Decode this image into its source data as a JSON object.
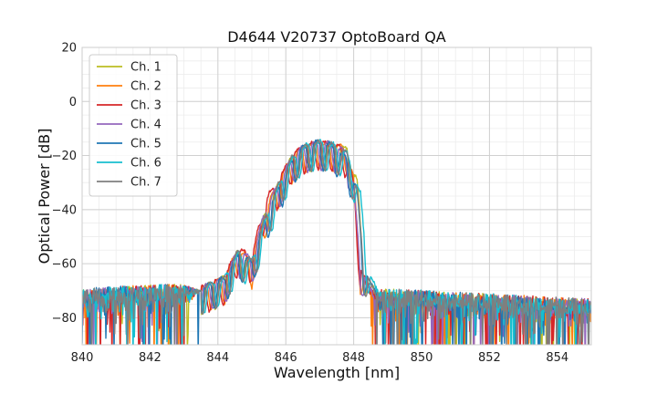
{
  "chart_data": {
    "type": "line",
    "title": "D4644 V20737 OptoBoard QA",
    "xlabel": "Wavelength [nm]",
    "ylabel": "Optical Power [dB]",
    "xlim": [
      840,
      855
    ],
    "ylim": [
      -90,
      20
    ],
    "xticks": [
      840,
      842,
      844,
      846,
      848,
      850,
      852,
      854
    ],
    "yticks": [
      20,
      0,
      -20,
      -40,
      -60,
      -80
    ],
    "xtick_labels": [
      "840",
      "842",
      "844",
      "846",
      "848",
      "850",
      "852",
      "854"
    ],
    "ytick_labels": [
      "20",
      "0",
      "−20",
      "−40",
      "−60",
      "−80"
    ],
    "grid": true,
    "minor_grid": true,
    "legend_position": "top-left",
    "noise_floor_db": -72,
    "series": [
      {
        "name": "Ch. 1",
        "color": "#bcbd22",
        "shift_nm": 0.12,
        "peak_db": -18,
        "band_nm": [
          843.5,
          848.4
        ],
        "anchors": [
          [
            840,
            -72
          ],
          [
            843.5,
            -70
          ],
          [
            844.2,
            -66
          ],
          [
            844.6,
            -56
          ],
          [
            845.0,
            -60
          ],
          [
            845.4,
            -42
          ],
          [
            845.8,
            -31
          ],
          [
            846.2,
            -21
          ],
          [
            846.6,
            -17
          ],
          [
            847.0,
            -16
          ],
          [
            847.4,
            -17
          ],
          [
            847.8,
            -18
          ],
          [
            848.1,
            -30
          ],
          [
            848.3,
            -62
          ],
          [
            848.7,
            -72
          ],
          [
            855,
            -76
          ]
        ]
      },
      {
        "name": "Ch. 2",
        "color": "#ff7f0e",
        "shift_nm": 0.0,
        "peak_db": -17,
        "band_nm": [
          843.5,
          848.3
        ],
        "anchors": [
          [
            840,
            -72
          ],
          [
            843.5,
            -70
          ],
          [
            844.2,
            -66
          ],
          [
            844.6,
            -55
          ],
          [
            845.0,
            -60
          ],
          [
            845.4,
            -41
          ],
          [
            845.8,
            -30
          ],
          [
            846.2,
            -21
          ],
          [
            846.6,
            -17
          ],
          [
            847.0,
            -16
          ],
          [
            847.4,
            -17
          ],
          [
            847.8,
            -18
          ],
          [
            848.0,
            -30
          ],
          [
            848.2,
            -62
          ],
          [
            848.6,
            -72
          ],
          [
            855,
            -76
          ]
        ]
      },
      {
        "name": "Ch. 3",
        "color": "#d62728",
        "shift_nm": -0.05,
        "peak_db": -17,
        "band_nm": [
          843.5,
          848.2
        ],
        "anchors": [
          [
            840,
            -72
          ],
          [
            843.5,
            -70
          ],
          [
            844.2,
            -66
          ],
          [
            844.6,
            -55
          ],
          [
            845.0,
            -58
          ],
          [
            845.4,
            -37
          ],
          [
            845.8,
            -30
          ],
          [
            846.2,
            -20
          ],
          [
            846.6,
            -17
          ],
          [
            847.0,
            -16
          ],
          [
            847.4,
            -17
          ],
          [
            847.8,
            -19
          ],
          [
            848.0,
            -32
          ],
          [
            848.2,
            -62
          ],
          [
            848.6,
            -72
          ],
          [
            855,
            -76
          ]
        ]
      },
      {
        "name": "Ch. 4",
        "color": "#9467bd",
        "shift_nm": 0.05,
        "peak_db": -18,
        "band_nm": [
          843.5,
          848.3
        ],
        "anchors": [
          [
            840,
            -72
          ],
          [
            843.5,
            -70
          ],
          [
            844.2,
            -66
          ],
          [
            844.6,
            -56
          ],
          [
            845.0,
            -59
          ],
          [
            845.4,
            -40
          ],
          [
            845.8,
            -31
          ],
          [
            846.2,
            -21
          ],
          [
            846.6,
            -17
          ],
          [
            847.0,
            -16
          ],
          [
            847.4,
            -17
          ],
          [
            847.8,
            -20
          ],
          [
            848.0,
            -32
          ],
          [
            848.2,
            -62
          ],
          [
            848.6,
            -72
          ],
          [
            855,
            -76
          ]
        ]
      },
      {
        "name": "Ch. 5",
        "color": "#1f77b4",
        "shift_nm": 0.1,
        "peak_db": -17,
        "band_nm": [
          843.5,
          848.4
        ],
        "anchors": [
          [
            840,
            -72
          ],
          [
            843.5,
            -70
          ],
          [
            844.2,
            -66
          ],
          [
            844.6,
            -57
          ],
          [
            845.0,
            -60
          ],
          [
            845.4,
            -44
          ],
          [
            845.8,
            -32
          ],
          [
            846.2,
            -22
          ],
          [
            846.6,
            -17
          ],
          [
            847.0,
            -16
          ],
          [
            847.4,
            -17
          ],
          [
            847.8,
            -22
          ],
          [
            848.1,
            -34
          ],
          [
            848.3,
            -62
          ],
          [
            848.7,
            -72
          ],
          [
            855,
            -76
          ]
        ]
      },
      {
        "name": "Ch. 6",
        "color": "#17becf",
        "shift_nm": 0.2,
        "peak_db": -18,
        "band_nm": [
          843.5,
          848.5
        ],
        "anchors": [
          [
            840,
            -72
          ],
          [
            843.5,
            -70
          ],
          [
            844.2,
            -66
          ],
          [
            844.6,
            -57
          ],
          [
            845.0,
            -60
          ],
          [
            845.4,
            -45
          ],
          [
            845.8,
            -32
          ],
          [
            846.2,
            -22
          ],
          [
            846.6,
            -17
          ],
          [
            847.0,
            -16
          ],
          [
            847.4,
            -17
          ],
          [
            847.8,
            -20
          ],
          [
            848.2,
            -35
          ],
          [
            848.4,
            -62
          ],
          [
            848.8,
            -72
          ],
          [
            855,
            -76
          ]
        ]
      },
      {
        "name": "Ch. 7",
        "color": "#7f7f7f",
        "shift_nm": 0.15,
        "peak_db": -18,
        "band_nm": [
          843.5,
          848.4
        ],
        "anchors": [
          [
            840,
            -72
          ],
          [
            843.5,
            -70
          ],
          [
            844.2,
            -66
          ],
          [
            844.6,
            -56
          ],
          [
            845.0,
            -60
          ],
          [
            845.4,
            -43
          ],
          [
            845.8,
            -31
          ],
          [
            846.2,
            -21
          ],
          [
            846.6,
            -17
          ],
          [
            847.0,
            -16
          ],
          [
            847.4,
            -17
          ],
          [
            847.8,
            -20
          ],
          [
            848.1,
            -33
          ],
          [
            848.3,
            -62
          ],
          [
            848.7,
            -72
          ],
          [
            855,
            -76
          ]
        ]
      }
    ]
  }
}
